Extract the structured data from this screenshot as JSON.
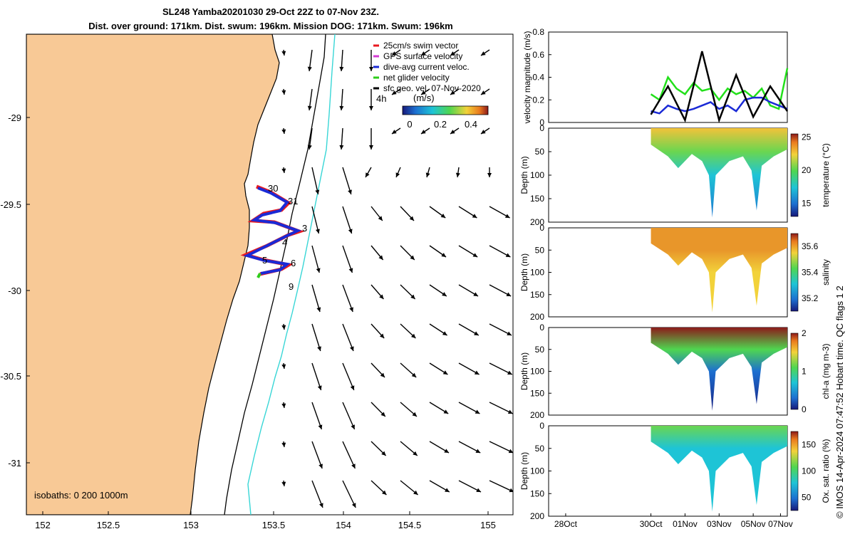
{
  "title_line1": "SL248 Yamba20201030 29-Oct 22Z to 07-Nov 23Z.",
  "title_line2": "Dist. over ground: 171km. Dist. swum: 196km. Mission DOG: 171km. Swum: 196km",
  "map": {
    "x_ticks": [
      "152",
      "152.5",
      "153",
      "153.5",
      "154",
      "154.5",
      "155"
    ],
    "y_ticks": [
      "-29",
      "-29.5",
      "-30",
      "-30.5",
      "-31"
    ],
    "isobaths_label": "isobaths: 0   200  1000m",
    "legend": [
      {
        "label": "25cm/s swim vector",
        "color": "#e8191f"
      },
      {
        "label": "GPS surface velocity",
        "color": "#d43bd4"
      },
      {
        "label": "dive-avg current veloc.",
        "color": "#1a2ad6"
      },
      {
        "label": "net glider velocity",
        "color": "#2ecc1a"
      },
      {
        "label": "sfc geo. vel. 07-Nov-2020",
        "color": "#000000"
      }
    ],
    "colorbar_title": "(m/s)",
    "colorbar_ticks": [
      "0",
      "0.2",
      "0.4"
    ],
    "arrow_scale_label": "4h",
    "day_labels": [
      "30",
      "31",
      "3",
      "4",
      "5",
      "6",
      "9"
    ]
  },
  "chart_data": [
    {
      "type": "line",
      "title": "",
      "ylabel": "velocity magnitude (m/s)",
      "ylim": [
        0,
        0.8
      ],
      "y_ticks": [
        "0",
        "0.2",
        "0.4",
        "0.6",
        "0.8"
      ],
      "x_range_days": [
        0,
        14
      ],
      "series": [
        {
          "name": "net glider velocity",
          "color": "#22e01a",
          "x": [
            6.0,
            6.5,
            7.0,
            7.5,
            8.0,
            8.5,
            9.0,
            9.5,
            10.0,
            10.5,
            11.0,
            11.5,
            12.0,
            12.5,
            13.0,
            13.5,
            14.0
          ],
          "values": [
            0.25,
            0.2,
            0.4,
            0.3,
            0.25,
            0.35,
            0.28,
            0.3,
            0.2,
            0.3,
            0.25,
            0.28,
            0.22,
            0.3,
            0.15,
            0.12,
            0.48
          ]
        },
        {
          "name": "dive-avg current veloc.",
          "color": "#1a2ad6",
          "x": [
            6.0,
            6.5,
            7.0,
            7.5,
            8.0,
            8.5,
            9.0,
            9.5,
            10.0,
            10.5,
            11.0,
            11.5,
            12.0,
            12.5,
            13.0,
            13.5,
            14.0
          ],
          "values": [
            0.1,
            0.08,
            0.15,
            0.12,
            0.1,
            0.12,
            0.15,
            0.18,
            0.12,
            0.15,
            0.1,
            0.2,
            0.22,
            0.22,
            0.18,
            0.15,
            0.12
          ]
        },
        {
          "name": "sfc geo. vel.",
          "color": "#000000",
          "x": [
            6.0,
            7.0,
            8.0,
            9.0,
            10.0,
            11.0,
            12.0,
            13.0,
            14.0
          ],
          "values": [
            0.07,
            0.32,
            0.02,
            0.63,
            0.02,
            0.42,
            0.05,
            0.32,
            0.1
          ]
        }
      ]
    },
    {
      "type": "heatmap",
      "ylabel": "Depth (m)",
      "ylim": [
        200,
        0
      ],
      "y_ticks": [
        "0",
        "50",
        "100",
        "150",
        "200"
      ],
      "colorbar_label": "temperature (°C)",
      "colorbar_ticks": [
        "15",
        "20",
        "25"
      ],
      "vmin": 13,
      "vmax": 25.5
    },
    {
      "type": "heatmap",
      "ylabel": "Depth (m)",
      "ylim": [
        200,
        0
      ],
      "y_ticks": [
        "0",
        "50",
        "100",
        "150",
        "200"
      ],
      "colorbar_label": "salinity",
      "colorbar_ticks": [
        "35.2",
        "35.4",
        "35.6"
      ],
      "vmin": 35.1,
      "vmax": 35.7
    },
    {
      "type": "heatmap",
      "ylabel": "Depth (m)",
      "ylim": [
        200,
        0
      ],
      "y_ticks": [
        "0",
        "50",
        "100",
        "150",
        "200"
      ],
      "colorbar_label": "chl-a (mg m-3)",
      "colorbar_ticks": [
        "0",
        "1",
        "2"
      ],
      "vmin": 0,
      "vmax": 2
    },
    {
      "type": "heatmap",
      "ylabel": "Depth (m)",
      "ylim": [
        200,
        0
      ],
      "y_ticks": [
        "0",
        "50",
        "100",
        "150",
        "200"
      ],
      "colorbar_label": "Ox. sat. ratio (%)",
      "colorbar_ticks": [
        "50",
        "100",
        "150"
      ],
      "vmin": 25,
      "vmax": 175,
      "x_ticks": [
        "28Oct",
        "30Oct",
        "01Nov",
        "03Nov",
        "05Nov",
        "07Nov"
      ]
    }
  ],
  "footer_text": "© IMOS 14-Apr-2024 07:47:52 Hobart time. QC flags 1  2"
}
